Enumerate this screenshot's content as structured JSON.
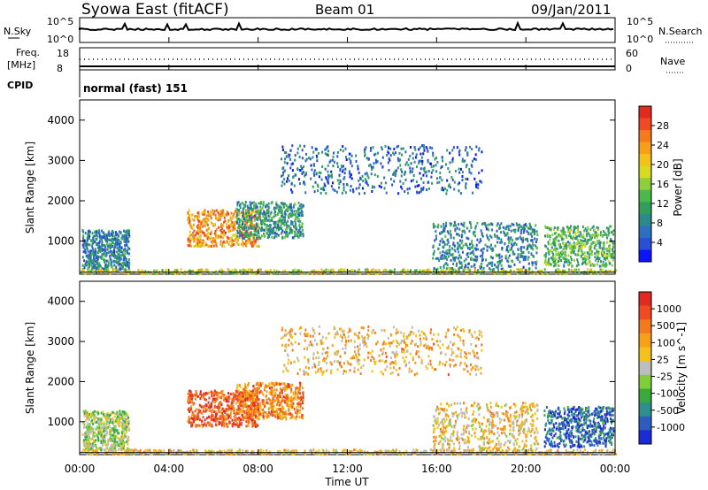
{
  "header": {
    "station": "Syowa East (fitACF)",
    "beam": "Beam 01",
    "date": "09/Jan/2011"
  },
  "top_panels": {
    "nsky_label": "N.Sky",
    "nsky_ticks": [
      "10^5",
      "10^0"
    ],
    "nsearch_label": "N.Search",
    "nsearch_ticks": [
      "10^5",
      "10^0"
    ],
    "freq_label": "Freq.",
    "freq_unit": "[MHz]",
    "freq_ticks": [
      "18",
      "8"
    ],
    "nave_label": "Nave",
    "nave_ticks": [
      "60",
      "0"
    ],
    "cpid_label": "CPID",
    "cpid_value": "normal (fast) 151"
  },
  "chart_data": [
    {
      "type": "heatmap",
      "name": "power-panel",
      "ylabel": "Slant Range [km]",
      "yticks": [
        "4000",
        "3000",
        "2000",
        "1000"
      ],
      "ylim": [
        180,
        4500
      ],
      "colorbar_label": "Power [dB]",
      "colorbar_ticks": [
        "28",
        "24",
        "20",
        "16",
        "12",
        "8",
        "4"
      ],
      "colorbar_colors": [
        "#0a14ff",
        "#2a4fd6",
        "#2f6fbf",
        "#2e8a8a",
        "#2f9f5a",
        "#4cb84a",
        "#8ccf3a",
        "#d9d91f",
        "#f2c21a",
        "#f6a017",
        "#f47a1e",
        "#ef4b22",
        "#e12a20"
      ],
      "clusters": [
        {
          "t": [
            0.1,
            2.2
          ],
          "r": [
            300,
            1300
          ],
          "level": 0.25
        },
        {
          "t": [
            4.8,
            8.0
          ],
          "r": [
            900,
            1800
          ],
          "level": 0.75
        },
        {
          "t": [
            7.0,
            10.0
          ],
          "r": [
            1100,
            2000
          ],
          "level": 0.3
        },
        {
          "t": [
            15.8,
            20.5
          ],
          "r": [
            300,
            1500
          ],
          "level": 0.25
        },
        {
          "t": [
            20.8,
            23.9
          ],
          "r": [
            400,
            1400
          ],
          "level": 0.4
        },
        {
          "t": [
            0.0,
            24.0
          ],
          "r": [
            220,
            330
          ],
          "level": 0.55
        },
        {
          "t": [
            9.0,
            18.0
          ],
          "r": [
            2200,
            3400
          ],
          "level": 0.2
        }
      ]
    },
    {
      "type": "heatmap",
      "name": "velocity-panel",
      "ylabel": "Slant Range [km]",
      "yticks": [
        "4000",
        "3000",
        "2000",
        "1000"
      ],
      "ylim": [
        180,
        4500
      ],
      "colorbar_label": "Velocity [m s^-1]",
      "colorbar_ticks": [
        "1000",
        "500",
        "100",
        "25",
        "-25",
        "-100",
        "-500",
        "-1000"
      ],
      "colorbar_colors": [
        "#1a2bd6",
        "#2e5bbf",
        "#2f8f8f",
        "#3aa83a",
        "#7fcf3a",
        "#bdbdbd",
        "#f2c21a",
        "#f6a017",
        "#f47a1e",
        "#ef4b22",
        "#e12a20"
      ],
      "clusters": [
        {
          "t": [
            0.1,
            2.2
          ],
          "r": [
            300,
            1300
          ],
          "level": 0.45
        },
        {
          "t": [
            4.8,
            8.0
          ],
          "r": [
            900,
            1800
          ],
          "level": 0.85
        },
        {
          "t": [
            7.0,
            10.0
          ],
          "r": [
            1100,
            2000
          ],
          "level": 0.75
        },
        {
          "t": [
            15.8,
            20.5
          ],
          "r": [
            300,
            1500
          ],
          "level": 0.6
        },
        {
          "t": [
            20.8,
            23.9
          ],
          "r": [
            400,
            1400
          ],
          "level": 0.15
        },
        {
          "t": [
            0.0,
            24.0
          ],
          "r": [
            220,
            330
          ],
          "level": 0.6
        },
        {
          "t": [
            9.0,
            18.0
          ],
          "r": [
            2200,
            3400
          ],
          "level": 0.65
        }
      ]
    }
  ],
  "time_axis": {
    "label": "Time UT",
    "ticks": [
      "00:00",
      "04:00",
      "08:00",
      "12:00",
      "16:00",
      "20:00",
      "00:00"
    ]
  },
  "colors": {
    "axis": "#000000",
    "background": "#ffffff"
  }
}
